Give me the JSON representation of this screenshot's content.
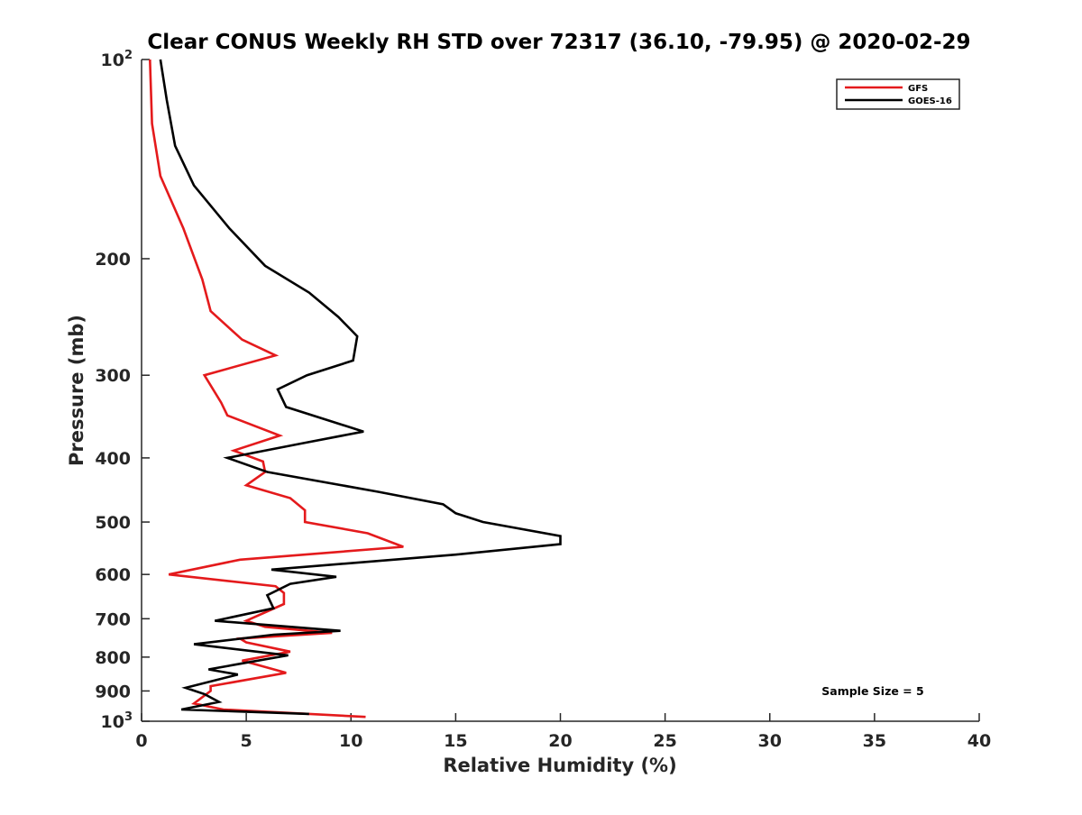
{
  "chart_data": {
    "type": "line",
    "title": "Clear CONUS Weekly RH STD over 72317 (36.10, -79.95) @ 2020-02-29",
    "xlabel": "Relative Humidity (%)",
    "ylabel": "Pressure (mb)",
    "xlim": [
      0,
      40
    ],
    "ylim": [
      1000,
      100
    ],
    "yscale": "log",
    "y_reversed": true,
    "grid": false,
    "legend_position": "top-right",
    "x_ticks": [
      "0",
      "5",
      "10",
      "15",
      "20",
      "25",
      "30",
      "35",
      "40"
    ],
    "y_ticks": [
      {
        "value": 100,
        "label": "10",
        "sup": "2"
      },
      {
        "value": 200,
        "label": "200"
      },
      {
        "value": 300,
        "label": "300"
      },
      {
        "value": 400,
        "label": "400"
      },
      {
        "value": 500,
        "label": "500"
      },
      {
        "value": 600,
        "label": "600"
      },
      {
        "value": 700,
        "label": "700"
      },
      {
        "value": 800,
        "label": "800"
      },
      {
        "value": 900,
        "label": "900"
      },
      {
        "value": 1000,
        "label": "10",
        "sup": "3"
      }
    ],
    "annotation": "Sample Size = 5",
    "series": [
      {
        "name": "GFS",
        "color": "#e41a1c",
        "points": [
          [
            0.4,
            100
          ],
          [
            0.5,
            125
          ],
          [
            0.9,
            150
          ],
          [
            2.0,
            180
          ],
          [
            2.9,
            215
          ],
          [
            3.3,
            240
          ],
          [
            4.8,
            265
          ],
          [
            6.4,
            280
          ],
          [
            3.0,
            300
          ],
          [
            3.8,
            330
          ],
          [
            4.1,
            345
          ],
          [
            6.6,
            370
          ],
          [
            4.4,
            390
          ],
          [
            5.8,
            405
          ],
          [
            5.9,
            420
          ],
          [
            5.0,
            440
          ],
          [
            7.1,
            460
          ],
          [
            7.8,
            480
          ],
          [
            7.8,
            500
          ],
          [
            10.8,
            520
          ],
          [
            12.5,
            545
          ],
          [
            4.7,
            570
          ],
          [
            1.3,
            600
          ],
          [
            6.4,
            625
          ],
          [
            6.8,
            640
          ],
          [
            6.8,
            665
          ],
          [
            5.0,
            705
          ],
          [
            5.9,
            720
          ],
          [
            9.1,
            735
          ],
          [
            4.7,
            750
          ],
          [
            5.0,
            760
          ],
          [
            7.1,
            785
          ],
          [
            4.8,
            810
          ],
          [
            6.9,
            845
          ],
          [
            3.3,
            885
          ],
          [
            3.3,
            900
          ],
          [
            2.5,
            940
          ],
          [
            3.9,
            960
          ],
          [
            10.7,
            985
          ]
        ]
      },
      {
        "name": "GOES-16",
        "color": "#000000",
        "points": [
          [
            0.9,
            100
          ],
          [
            1.2,
            115
          ],
          [
            1.6,
            135
          ],
          [
            2.5,
            155
          ],
          [
            4.2,
            180
          ],
          [
            5.9,
            205
          ],
          [
            8.0,
            225
          ],
          [
            9.4,
            245
          ],
          [
            10.3,
            262
          ],
          [
            10.1,
            285
          ],
          [
            7.9,
            300
          ],
          [
            6.5,
            315
          ],
          [
            6.9,
            335
          ],
          [
            10.6,
            365
          ],
          [
            7.7,
            380
          ],
          [
            4.1,
            400
          ],
          [
            6.0,
            420
          ],
          [
            11.3,
            450
          ],
          [
            14.4,
            470
          ],
          [
            15.0,
            485
          ],
          [
            16.3,
            500
          ],
          [
            20.0,
            525
          ],
          [
            20.0,
            540
          ],
          [
            15.0,
            560
          ],
          [
            6.2,
            590
          ],
          [
            9.3,
            605
          ],
          [
            7.1,
            620
          ],
          [
            6.0,
            645
          ],
          [
            6.3,
            675
          ],
          [
            3.5,
            705
          ],
          [
            9.5,
            730
          ],
          [
            6.3,
            740
          ],
          [
            2.5,
            765
          ],
          [
            7.0,
            795
          ],
          [
            4.6,
            820
          ],
          [
            3.2,
            835
          ],
          [
            4.6,
            850
          ],
          [
            2.1,
            890
          ],
          [
            3.0,
            910
          ],
          [
            3.7,
            935
          ],
          [
            1.9,
            960
          ],
          [
            8.0,
            975
          ]
        ]
      }
    ]
  }
}
